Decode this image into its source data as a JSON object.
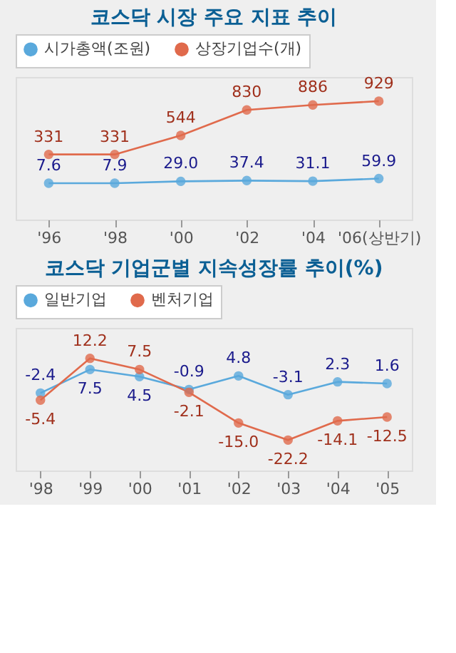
{
  "chart_data": [
    {
      "type": "line",
      "title": "코스닥 시장 주요 지표 추이",
      "categories": [
        "'96",
        "'98",
        "'00",
        "'02",
        "'04",
        "'06(상반기)"
      ],
      "series": [
        {
          "name": "시가총액(조원)",
          "color": "#5aa9dc",
          "values": [
            7.6,
            7.9,
            29.0,
            37.4,
            31.1,
            59.9
          ],
          "value_labels": [
            "7.6",
            "7.9",
            "29.0",
            "37.4",
            "31.1",
            "59.9"
          ]
        },
        {
          "name": "상장기업수(개)",
          "color": "#e06a4c",
          "values": [
            331,
            331,
            544,
            830,
            886,
            929
          ],
          "value_labels": [
            "331",
            "331",
            "544",
            "830",
            "886",
            "929"
          ]
        }
      ],
      "legend": "top left",
      "marker": "circle",
      "line_style": "solid",
      "grid": false
    },
    {
      "type": "line",
      "title": "코스닥 기업군별 지속성장률 추이(%)",
      "categories": [
        "'98",
        "'99",
        "'00",
        "'01",
        "'02",
        "'03",
        "'04",
        "'05"
      ],
      "series": [
        {
          "name": "일반기업",
          "color": "#5aa9dc",
          "values": [
            -2.4,
            7.5,
            4.5,
            -0.9,
            4.8,
            -3.1,
            2.3,
            1.6
          ],
          "value_labels": [
            "-2.4",
            "7.5",
            "4.5",
            "-0.9",
            "4.8",
            "-3.1",
            "2.3",
            "1.6"
          ]
        },
        {
          "name": "벤처기업",
          "color": "#e06a4c",
          "values": [
            -5.4,
            12.2,
            7.5,
            -2.1,
            -15.0,
            -22.2,
            -14.1,
            -12.5
          ],
          "value_labels": [
            "-5.4",
            "12.2",
            "7.5",
            "-2.1",
            "-15.0",
            "-22.2",
            "-14.1",
            "-12.5"
          ]
        }
      ],
      "legend": "top left",
      "marker": "circle",
      "line_style": "solid",
      "grid": false
    }
  ]
}
